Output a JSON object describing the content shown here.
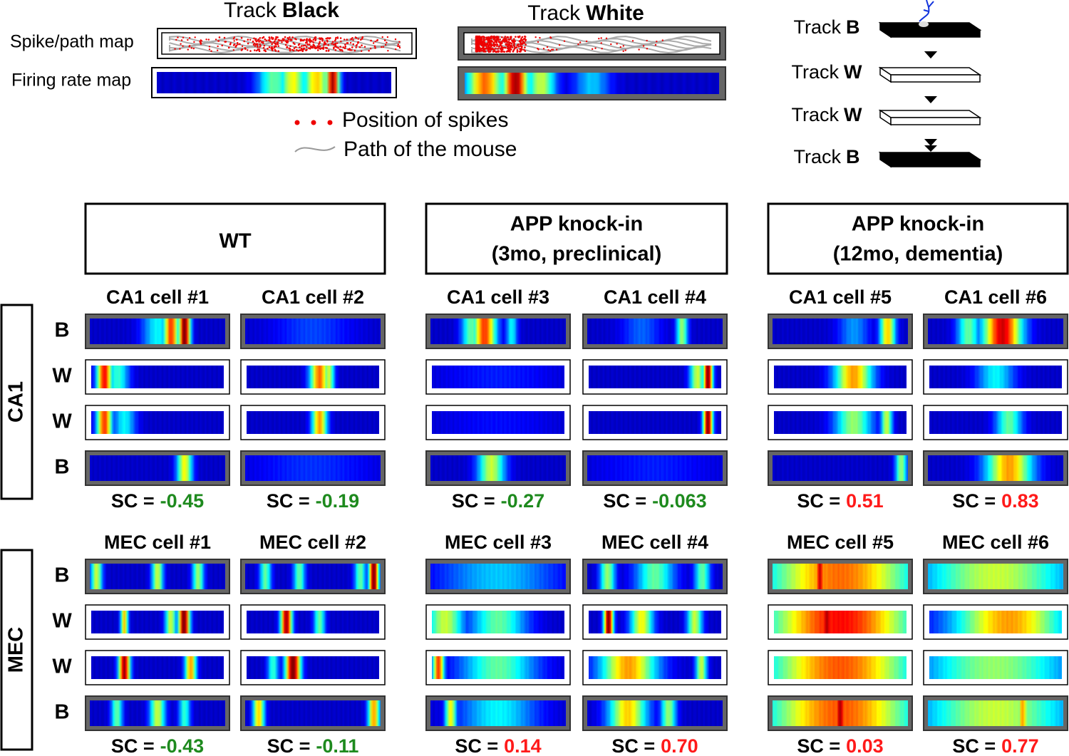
{
  "top": {
    "tracks": [
      {
        "word": "Track",
        "name": "Black"
      },
      {
        "word": "Track",
        "name": "White"
      }
    ],
    "row_labels": [
      "Spike/path map",
      "Firing rate map"
    ],
    "key": [
      "Position of spikes",
      "Path of the mouse"
    ],
    "sequence": [
      {
        "word": "Track",
        "name": "B"
      },
      {
        "word": "Track",
        "name": "W"
      },
      {
        "word": "Track",
        "name": "W"
      },
      {
        "word": "Track",
        "name": "B"
      }
    ]
  },
  "groups": [
    {
      "title": [
        "WT"
      ]
    },
    {
      "title": [
        "APP knock-in",
        "(3mo, preclinical)"
      ]
    },
    {
      "title": [
        "APP knock-in",
        "(12mo, dementia)"
      ]
    }
  ],
  "sc_prefix": "SC =",
  "regions": [
    {
      "label": "CA1",
      "tracks": [
        "B",
        "W",
        "W",
        "B"
      ],
      "cells": [
        {
          "title": "CA1 cell #1",
          "sc": "-0.45"
        },
        {
          "title": "CA1 cell #2",
          "sc": "-0.19"
        },
        {
          "title": "CA1 cell #3",
          "sc": "-0.27"
        },
        {
          "title": "CA1 cell #4",
          "sc": "-0.063"
        },
        {
          "title": "CA1 cell #5",
          "sc": "0.51"
        },
        {
          "title": "CA1 cell #6",
          "sc": "0.83"
        }
      ]
    },
    {
      "label": "MEC",
      "tracks": [
        "B",
        "W",
        "W",
        "B"
      ],
      "cells": [
        {
          "title": "MEC cell #1",
          "sc": "-0.43"
        },
        {
          "title": "MEC cell #2",
          "sc": "-0.11"
        },
        {
          "title": "MEC cell #3",
          "sc": "0.14"
        },
        {
          "title": "MEC cell #4",
          "sc": "0.70"
        },
        {
          "title": "MEC cell #5",
          "sc": "0.03"
        },
        {
          "title": "MEC cell #6",
          "sc": "0.77"
        }
      ]
    }
  ]
}
